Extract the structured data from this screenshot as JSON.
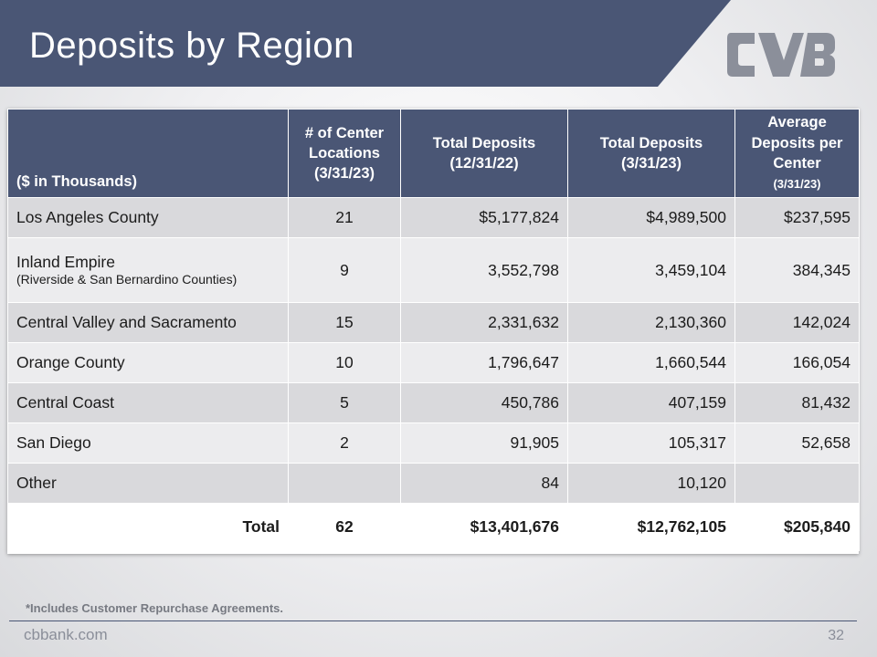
{
  "header": {
    "title": "Deposits by Region",
    "banner_color": "#4a5675"
  },
  "logo": {
    "icon": "cvb-logo-icon",
    "color": "#8b8f9a"
  },
  "table": {
    "columns": [
      "($ in Thousands)",
      "# of Center Locations (3/31/23)",
      "Total Deposits (12/31/22)",
      "Total Deposits (3/31/23)",
      "Average Deposits per Center",
      "(3/31/23)"
    ],
    "rows": [
      {
        "region": "Los Angeles County",
        "region_sub": "",
        "locations": "21",
        "dep_1222": "$5,177,824",
        "dep_0323": "$4,989,500",
        "avg": "$237,595"
      },
      {
        "region": "Inland Empire",
        "region_sub": "(Riverside & San Bernardino Counties)",
        "locations": "9",
        "dep_1222": "3,552,798",
        "dep_0323": "3,459,104",
        "avg": "384,345"
      },
      {
        "region": "Central Valley and Sacramento",
        "region_sub": "",
        "locations": "15",
        "dep_1222": "2,331,632",
        "dep_0323": "2,130,360",
        "avg": "142,024"
      },
      {
        "region": "Orange County",
        "region_sub": "",
        "locations": "10",
        "dep_1222": "1,796,647",
        "dep_0323": "1,660,544",
        "avg": "166,054"
      },
      {
        "region": "Central Coast",
        "region_sub": "",
        "locations": "5",
        "dep_1222": "450,786",
        "dep_0323": "407,159",
        "avg": "81,432"
      },
      {
        "region": "San Diego",
        "region_sub": "",
        "locations": "2",
        "dep_1222": "91,905",
        "dep_0323": "105,317",
        "avg": "52,658"
      },
      {
        "region": "Other",
        "region_sub": "",
        "locations": "",
        "dep_1222": "84",
        "dep_0323": "10,120",
        "avg": ""
      }
    ],
    "total": {
      "label": "Total",
      "locations": "62",
      "dep_1222": "$13,401,676",
      "dep_0323": "$12,762,105",
      "avg": "$205,840"
    }
  },
  "footer": {
    "footnote": "*Includes Customer Repurchase Agreements.",
    "site": "cbbank.com",
    "page": "32"
  }
}
